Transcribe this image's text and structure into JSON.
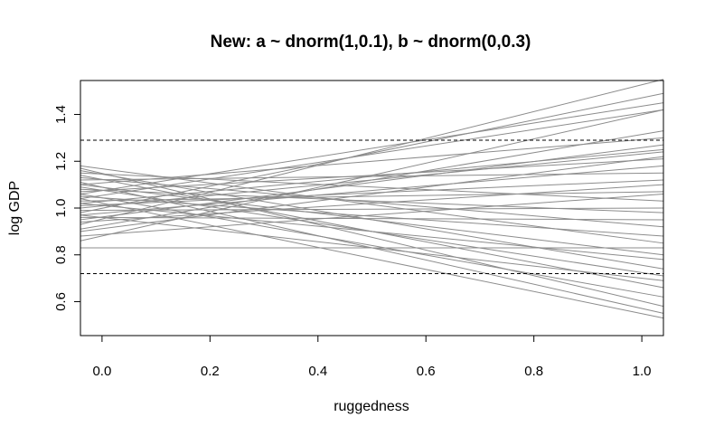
{
  "chart_data": {
    "type": "line",
    "title": "New: a ~ dnorm(1,0.1), b ~ dnorm(0,0.3)",
    "xlabel": "ruggedness",
    "ylabel": "log GDP",
    "xlim": [
      -0.04,
      1.04
    ],
    "ylim": [
      0.455,
      1.545
    ],
    "x_ticks": [
      0.0,
      0.2,
      0.4,
      0.6,
      0.8,
      1.0
    ],
    "x_tick_labels": [
      "0.0",
      "0.2",
      "0.4",
      "0.6",
      "0.8",
      "1.0"
    ],
    "y_ticks": [
      0.6,
      0.8,
      1.0,
      1.2,
      1.4
    ],
    "y_tick_labels": [
      "0.6",
      "0.8",
      "1.0",
      "1.2",
      "1.4"
    ],
    "reference_lines": [
      1.29,
      0.72
    ],
    "grid": false,
    "legend": "none",
    "line_color": "#8c8c8c",
    "reference_line_color": "#000000",
    "series": [
      {
        "x": [
          -0.04,
          1.04
        ],
        "y": [
          0.93,
          1.55
        ]
      },
      {
        "x": [
          -0.04,
          1.04
        ],
        "y": [
          0.98,
          1.49
        ]
      },
      {
        "x": [
          -0.04,
          1.04
        ],
        "y": [
          1.06,
          1.45
        ]
      },
      {
        "x": [
          -0.04,
          1.04
        ],
        "y": [
          1.04,
          1.42
        ]
      },
      {
        "x": [
          -0.04,
          1.04
        ],
        "y": [
          0.86,
          1.42
        ]
      },
      {
        "x": [
          -0.04,
          1.04
        ],
        "y": [
          0.91,
          1.33
        ]
      },
      {
        "x": [
          -0.04,
          1.04
        ],
        "y": [
          1.1,
          1.3
        ]
      },
      {
        "x": [
          -0.04,
          1.04
        ],
        "y": [
          0.95,
          1.27
        ]
      },
      {
        "x": [
          -0.04,
          1.04
        ],
        "y": [
          1.02,
          1.25
        ]
      },
      {
        "x": [
          -0.04,
          1.04
        ],
        "y": [
          1.0,
          1.24
        ]
      },
      {
        "x": [
          -0.04,
          1.04
        ],
        "y": [
          0.9,
          1.22
        ]
      },
      {
        "x": [
          -0.04,
          1.04
        ],
        "y": [
          1.07,
          1.21
        ]
      },
      {
        "x": [
          -0.04,
          1.04
        ],
        "y": [
          0.97,
          1.18
        ]
      },
      {
        "x": [
          -0.04,
          1.04
        ],
        "y": [
          1.12,
          1.15
        ]
      },
      {
        "x": [
          -0.04,
          1.04
        ],
        "y": [
          1.01,
          1.12
        ]
      },
      {
        "x": [
          -0.04,
          1.04
        ],
        "y": [
          0.94,
          1.1
        ]
      },
      {
        "x": [
          -0.04,
          1.04
        ],
        "y": [
          1.03,
          1.07
        ]
      },
      {
        "x": [
          -0.04,
          1.04
        ],
        "y": [
          0.88,
          1.06
        ]
      },
      {
        "x": [
          -0.04,
          1.04
        ],
        "y": [
          1.15,
          1.03
        ]
      },
      {
        "x": [
          -0.04,
          1.04
        ],
        "y": [
          0.99,
          1.0
        ]
      },
      {
        "x": [
          -0.04,
          1.04
        ],
        "y": [
          1.08,
          0.98
        ]
      },
      {
        "x": [
          -0.04,
          1.04
        ],
        "y": [
          0.96,
          0.95
        ]
      },
      {
        "x": [
          -0.04,
          1.04
        ],
        "y": [
          1.13,
          0.92
        ]
      },
      {
        "x": [
          -0.04,
          1.04
        ],
        "y": [
          1.05,
          0.88
        ]
      },
      {
        "x": [
          -0.04,
          1.04
        ],
        "y": [
          1.18,
          0.85
        ]
      },
      {
        "x": [
          -0.04,
          1.04
        ],
        "y": [
          0.83,
          0.83
        ]
      },
      {
        "x": [
          -0.04,
          1.04
        ],
        "y": [
          1.1,
          0.8
        ]
      },
      {
        "x": [
          -0.04,
          1.04
        ],
        "y": [
          1.02,
          0.78
        ]
      },
      {
        "x": [
          -0.04,
          1.04
        ],
        "y": [
          1.16,
          0.74
        ]
      },
      {
        "x": [
          -0.04,
          1.04
        ],
        "y": [
          1.09,
          0.71
        ]
      },
      {
        "x": [
          -0.04,
          1.04
        ],
        "y": [
          0.97,
          0.69
        ]
      },
      {
        "x": [
          -0.04,
          1.04
        ],
        "y": [
          1.14,
          0.66
        ]
      },
      {
        "x": [
          -0.04,
          1.04
        ],
        "y": [
          1.06,
          0.62
        ]
      },
      {
        "x": [
          -0.04,
          1.04
        ],
        "y": [
          1.17,
          0.58
        ]
      },
      {
        "x": [
          -0.04,
          1.04
        ],
        "y": [
          1.11,
          0.55
        ]
      },
      {
        "x": [
          -0.04,
          1.04
        ],
        "y": [
          1.04,
          0.53
        ]
      }
    ]
  }
}
